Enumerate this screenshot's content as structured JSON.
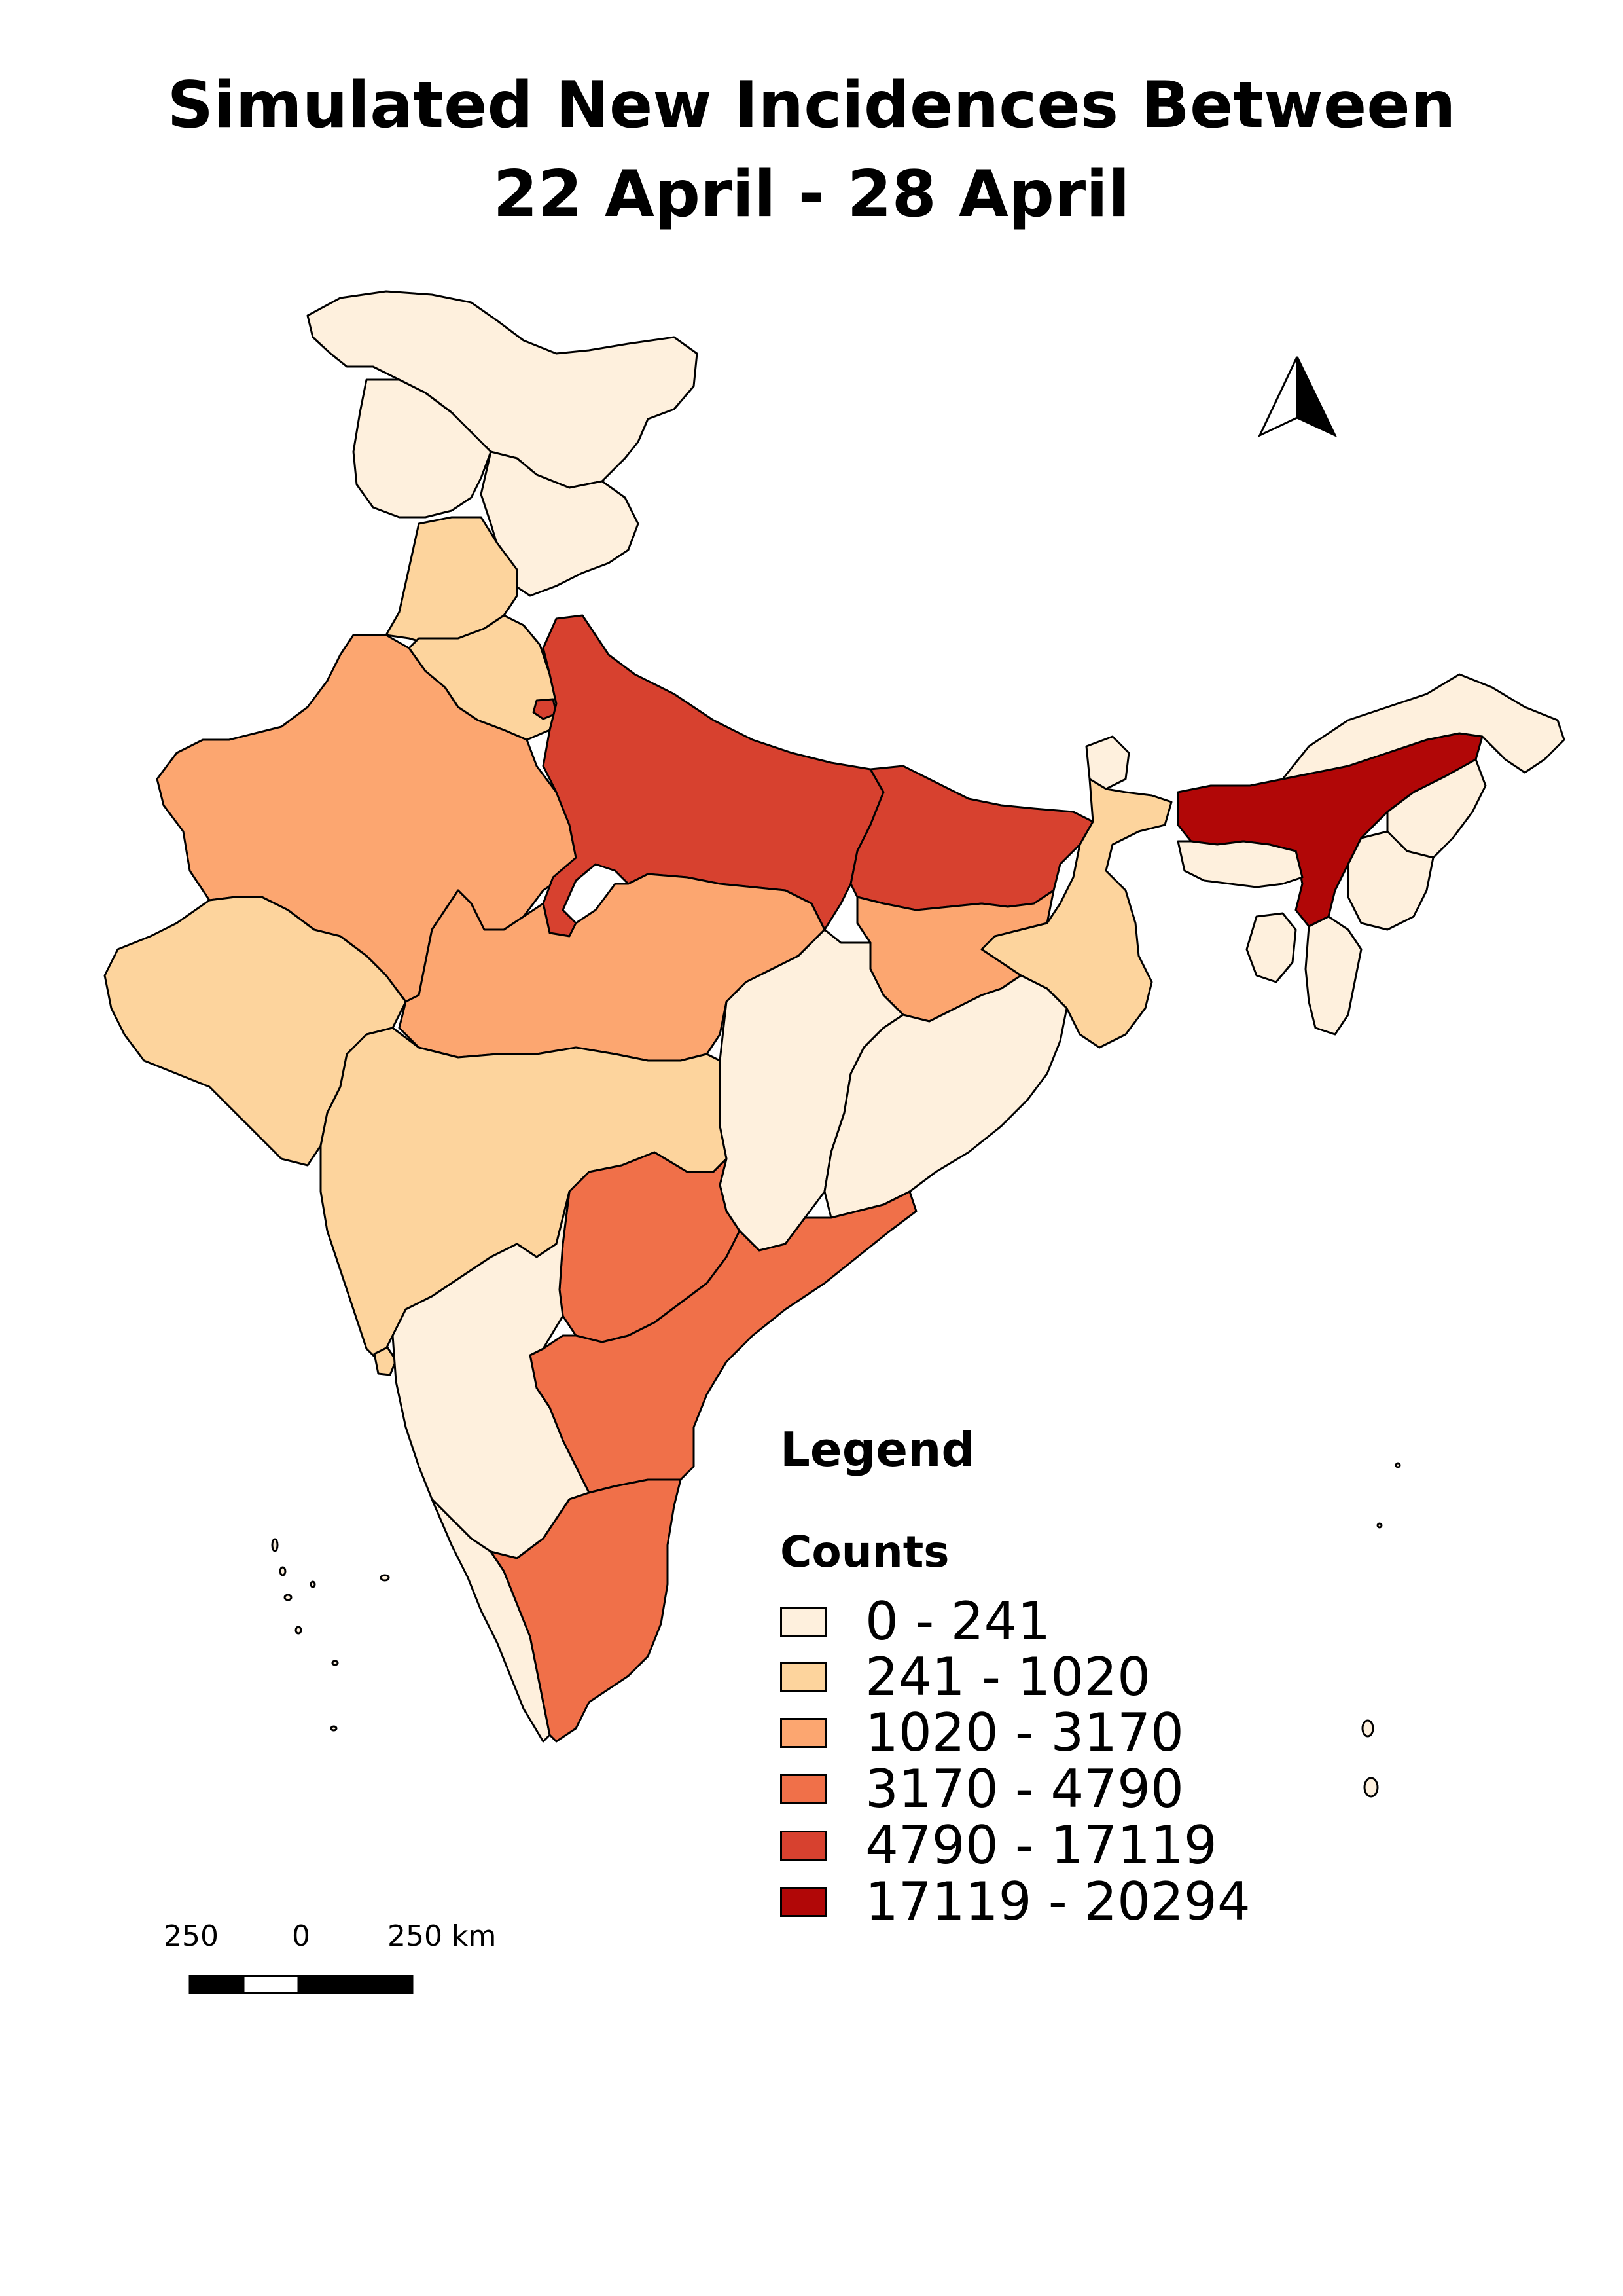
{
  "title": {
    "line1": "Simulated New Incidences Between",
    "line2": "22 April - 28 April"
  },
  "legend": {
    "title": "Legend",
    "subtitle": "Counts",
    "classes": [
      {
        "label": "0 - 241",
        "color": "#fef0dd"
      },
      {
        "label": "241 - 1020",
        "color": "#fdd49d"
      },
      {
        "label": "1020 - 3170",
        "color": "#fca670"
      },
      {
        "label": "3170 - 4790",
        "color": "#f07049"
      },
      {
        "label": "4790 - 17119",
        "color": "#d7412f"
      },
      {
        "label": "17119 - 20294",
        "color": "#b10707"
      }
    ]
  },
  "scale_bar": {
    "left_label": "250",
    "mid_label": "0",
    "right_label": "250 km"
  },
  "north_arrow": {
    "icon": "north-arrow-icon"
  },
  "regions": [
    {
      "name": "Jammu and Kashmir",
      "class": 0
    },
    {
      "name": "Himachal Pradesh",
      "class": 0
    },
    {
      "name": "Punjab",
      "class": 1
    },
    {
      "name": "Uttarakhand",
      "class": 0
    },
    {
      "name": "Haryana",
      "class": 1
    },
    {
      "name": "Rajasthan",
      "class": 2
    },
    {
      "name": "Uttar Pradesh",
      "class": 4
    },
    {
      "name": "Bihar",
      "class": 4
    },
    {
      "name": "Sikkim",
      "class": 0
    },
    {
      "name": "West Bengal",
      "class": 1
    },
    {
      "name": "Assam",
      "class": 5
    },
    {
      "name": "Arunachal Pradesh",
      "class": 0
    },
    {
      "name": "Meghalaya",
      "class": 0
    },
    {
      "name": "Nagaland",
      "class": 0
    },
    {
      "name": "Manipur",
      "class": 0
    },
    {
      "name": "Mizoram",
      "class": 0
    },
    {
      "name": "Tripura",
      "class": 0
    },
    {
      "name": "Gujarat",
      "class": 1
    },
    {
      "name": "Madhya Pradesh",
      "class": 2
    },
    {
      "name": "Jharkhand",
      "class": 2
    },
    {
      "name": "Chhattisgarh",
      "class": 0
    },
    {
      "name": "Odisha",
      "class": 0
    },
    {
      "name": "Maharashtra",
      "class": 1
    },
    {
      "name": "Telangana",
      "class": 3
    },
    {
      "name": "Andhra Pradesh",
      "class": 3
    },
    {
      "name": "Karnataka",
      "class": 0
    },
    {
      "name": "Goa",
      "class": 1
    },
    {
      "name": "Kerala",
      "class": 0
    },
    {
      "name": "Tamil Nadu",
      "class": 3
    },
    {
      "name": "Delhi",
      "class": 4
    }
  ]
}
